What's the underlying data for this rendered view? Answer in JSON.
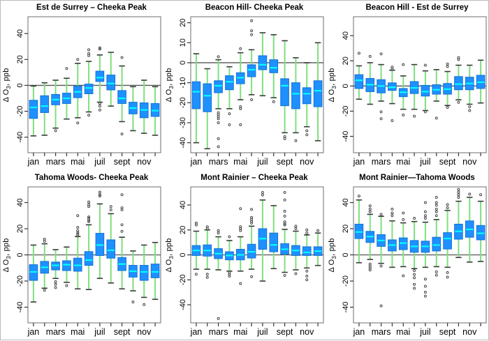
{
  "figure": {
    "ylabel_pre": "Δ O",
    "ylabel_sub": "3",
    "ylabel_post": ", ppb",
    "x_labels": [
      "jan",
      "mars",
      "mai",
      "juil",
      "sept",
      "nov"
    ]
  },
  "colors": {
    "box_fill": "#1E90FF",
    "box_stroke": "#1570D6",
    "median": "#00FFFF",
    "whisker": "#7FDF7F",
    "staple": "#3a3a3a",
    "outlier": "#4a4a4a",
    "zero_line": "#555555",
    "frame": "#6e6e6e",
    "tick": "#333333"
  },
  "chart_data": [
    {
      "type": "boxplot",
      "title": "Est de Surrey – Cheeka Peak",
      "ylim": [
        -52,
        53
      ],
      "yticks": [
        -40,
        -20,
        0,
        20,
        40
      ],
      "boxes": [
        {
          "lo": -39,
          "q1": -25.5,
          "med": -17,
          "q3": -11.5,
          "hi": -0.5,
          "out": []
        },
        {
          "lo": -38.5,
          "q1": -21,
          "med": -16,
          "q3": -8,
          "hi": 2,
          "out": []
        },
        {
          "lo": -33,
          "q1": -15,
          "med": -11,
          "q3": -7,
          "hi": 4,
          "out": [
            -35
          ]
        },
        {
          "lo": -26,
          "q1": -14,
          "med": -10,
          "q3": -6,
          "hi": 5.5,
          "out": [
            13
          ]
        },
        {
          "lo": -25,
          "q1": -9.5,
          "med": -5,
          "q3": -0.5,
          "hi": 17,
          "out": [
            20,
            -29
          ]
        },
        {
          "lo": -20.5,
          "q1": -6.5,
          "med": -2,
          "q3": 1,
          "hi": 18.5,
          "out": [
            23,
            24.5,
            27.5,
            -23
          ]
        },
        {
          "lo": -13,
          "q1": 3,
          "med": 6,
          "q3": 11,
          "hi": 23.5,
          "out": [
            28,
            29,
            -14,
            -16,
            -19
          ]
        },
        {
          "lo": -16,
          "q1": -3.5,
          "med": 1.5,
          "q3": 8,
          "hi": 25.5,
          "out": []
        },
        {
          "lo": -28,
          "q1": -14,
          "med": -10,
          "q3": -4,
          "hi": 15,
          "out": [
            21.5,
            -37.5
          ]
        },
        {
          "lo": -35,
          "q1": -22,
          "med": -17.5,
          "q3": -13,
          "hi": -1,
          "out": []
        },
        {
          "lo": -37,
          "q1": -25,
          "med": -19,
          "q3": -13.5,
          "hi": 4,
          "out": []
        },
        {
          "lo": -38.5,
          "q1": -24,
          "med": -19.5,
          "q3": -14,
          "hi": -1,
          "out": []
        }
      ]
    },
    {
      "type": "boxplot",
      "title": "Beacon Hill- Cheeka Peak",
      "ylim": [
        -45,
        23
      ],
      "yticks": [
        -40,
        -30,
        -20,
        -10,
        0,
        10,
        20
      ],
      "boxes": [
        {
          "lo": -40,
          "q1": -23,
          "med": -14.5,
          "q3": -9.5,
          "hi": 4.5,
          "out": []
        },
        {
          "lo": -43,
          "q1": -24.5,
          "med": -16.5,
          "q3": -10.5,
          "hi": -3,
          "out": []
        },
        {
          "lo": -23,
          "q1": -15,
          "med": -11.5,
          "q3": -9,
          "hi": 1.5,
          "out": [
            3,
            -25,
            -26,
            -27,
            -28,
            -30,
            -38,
            -42
          ]
        },
        {
          "lo": -23,
          "q1": -13.5,
          "med": -9.5,
          "q3": -6.5,
          "hi": -2,
          "out": [
            -25.5,
            -31
          ]
        },
        {
          "lo": -18.5,
          "q1": -10.5,
          "med": -7.5,
          "q3": -5,
          "hi": 5,
          "out": [
            7,
            -22,
            -23,
            -31
          ]
        },
        {
          "lo": -16,
          "q1": -7,
          "med": -3.5,
          "q3": -1,
          "hi": 6.5,
          "out": [
            14,
            16,
            21,
            -18.5
          ]
        },
        {
          "lo": -16.5,
          "q1": -3.5,
          "med": -1,
          "q3": 3.5,
          "hi": 15,
          "out": []
        },
        {
          "lo": -17.5,
          "q1": -5,
          "med": -2.5,
          "q3": 1.5,
          "hi": 14,
          "out": [
            -19.5
          ]
        },
        {
          "lo": -35,
          "q1": -21.5,
          "med": -11.5,
          "q3": -8,
          "hi": 11,
          "out": [
            -37,
            -38
          ]
        },
        {
          "lo": -35,
          "q1": -23,
          "med": -15.5,
          "q3": -10,
          "hi": 2.5,
          "out": [
            -39
          ]
        },
        {
          "lo": -32,
          "q1": -20.5,
          "med": -15.5,
          "q3": -12.5,
          "hi": 0,
          "out": [
            -34,
            -36
          ]
        },
        {
          "lo": -39,
          "q1": -22,
          "med": -14,
          "q3": -9,
          "hi": 10,
          "out": []
        }
      ]
    },
    {
      "type": "boxplot",
      "title": "Beacon Hill - Est de Surrey",
      "ylim": [
        -53,
        55
      ],
      "yticks": [
        -40,
        -20,
        0,
        20,
        40
      ],
      "boxes": [
        {
          "lo": -10.5,
          "q1": -2,
          "med": 4.5,
          "q3": 9,
          "hi": 16,
          "out": [
            26
          ]
        },
        {
          "lo": -14.5,
          "q1": -4.5,
          "med": 1,
          "q3": 6,
          "hi": 18.5,
          "out": [
            23.5
          ]
        },
        {
          "lo": -12,
          "q1": -5.5,
          "med": 0,
          "q3": 5,
          "hi": 17,
          "out": [
            25.5,
            -20.5,
            -26
          ]
        },
        {
          "lo": -14,
          "q1": -3.5,
          "med": -1,
          "q3": 2.5,
          "hi": 12.5,
          "out": [
            13.5,
            15,
            -27.5
          ]
        },
        {
          "lo": -18.5,
          "q1": -8.5,
          "med": -5,
          "q3": -2,
          "hi": 8,
          "out": [
            17,
            -23
          ]
        },
        {
          "lo": -18.5,
          "q1": -6,
          "med": -1.5,
          "q3": 3.5,
          "hi": 17,
          "out": [
            -24
          ]
        },
        {
          "lo": -19.5,
          "q1": -8,
          "med": -4.5,
          "q3": 0.5,
          "hi": 12,
          "out": [
            16.5,
            -20.5
          ]
        },
        {
          "lo": -12,
          "q1": -6.5,
          "med": -3,
          "q3": 1,
          "hi": 13,
          "out": [
            -25.5
          ]
        },
        {
          "lo": -15.5,
          "q1": -6.5,
          "med": -2.5,
          "q3": 2,
          "hi": 11.5,
          "out": [
            15.5,
            17.5,
            -17
          ]
        },
        {
          "lo": -11,
          "q1": -3,
          "med": 1.5,
          "q3": 7.5,
          "hi": 16.5,
          "out": [
            21,
            22.5,
            -13
          ]
        },
        {
          "lo": -14.5,
          "q1": -3,
          "med": 2,
          "q3": 7,
          "hi": 16.5,
          "out": [
            -16.5,
            -19.5
          ]
        },
        {
          "lo": -13.5,
          "q1": -2,
          "med": 3,
          "q3": 8.5,
          "hi": 20.5,
          "out": []
        }
      ]
    },
    {
      "type": "boxplot",
      "title": "Tahoma Woods- Cheeka Peak",
      "ylim": [
        -52,
        52
      ],
      "yticks": [
        -40,
        -20,
        0,
        20,
        40
      ],
      "boxes": [
        {
          "lo": -36,
          "q1": -19.5,
          "med": -13,
          "q3": -7.5,
          "hi": 7.5,
          "out": []
        },
        {
          "lo": -25.5,
          "q1": -14,
          "med": -9.5,
          "q3": -5,
          "hi": 8.5,
          "out": [
            10.5,
            12,
            -27
          ]
        },
        {
          "lo": -18,
          "q1": -11.5,
          "med": -8,
          "q3": -5.5,
          "hi": 4,
          "out": [
            -20.5,
            -22.5,
            -25
          ]
        },
        {
          "lo": -21,
          "q1": -12,
          "med": -7.5,
          "q3": -4.5,
          "hi": 6,
          "out": [
            -23.5
          ]
        },
        {
          "lo": -26,
          "q1": -12.5,
          "med": -8,
          "q3": -2.5,
          "hi": 14,
          "out": [
            14.5,
            16,
            17,
            18.5,
            21,
            30
          ]
        },
        {
          "lo": -26.5,
          "q1": -8,
          "med": -4,
          "q3": 2.5,
          "hi": 23,
          "out": [
            25.5,
            26.5,
            28,
            29,
            37,
            38.5,
            40.5
          ]
        },
        {
          "lo": -18,
          "q1": -0.5,
          "med": 7.5,
          "q3": 16.5,
          "hi": 39,
          "out": [
            45,
            46,
            48
          ]
        },
        {
          "lo": -21.5,
          "q1": -2.5,
          "med": 3.5,
          "q3": 11.5,
          "hi": 31.5,
          "out": [
            34.5,
            37
          ]
        },
        {
          "lo": -26,
          "q1": -12,
          "med": -7,
          "q3": -2,
          "hi": 13.5,
          "out": [
            18,
            23,
            34.5,
            36,
            46
          ]
        },
        {
          "lo": -27.5,
          "q1": -17,
          "med": -12.5,
          "q3": -8,
          "hi": 3,
          "out": [
            -36
          ]
        },
        {
          "lo": -32.5,
          "q1": -19.5,
          "med": -13,
          "q3": -8,
          "hi": 7.5,
          "out": [
            -38
          ]
        },
        {
          "lo": -34,
          "q1": -17.5,
          "med": -13,
          "q3": -7,
          "hi": 9.5,
          "out": []
        }
      ]
    },
    {
      "type": "boxplot",
      "title": "Mont Rainier – Cheeka Peak",
      "ylim": [
        -54.5,
        54.5
      ],
      "yticks": [
        -40,
        -20,
        0,
        20,
        40
      ],
      "boxes": [
        {
          "lo": -11.5,
          "q1": -0.5,
          "med": 3.5,
          "q3": 7.5,
          "hi": 19,
          "out": [
            24,
            25.5,
            -15.5
          ]
        },
        {
          "lo": -11.5,
          "q1": -1,
          "med": 3.5,
          "q3": 8,
          "hi": 20,
          "out": [
            21,
            22.5,
            -15.5,
            -18
          ]
        },
        {
          "lo": -12,
          "q1": -3,
          "med": 1,
          "q3": 5,
          "hi": 14.5,
          "out": [
            17.5,
            19.5,
            -51
          ]
        },
        {
          "lo": -13,
          "q1": -4,
          "med": -0.5,
          "q3": 2.5,
          "hi": 11.5,
          "out": [
            14.5,
            -14,
            -15.5,
            -17
          ]
        },
        {
          "lo": -13,
          "q1": -4,
          "med": 0,
          "q3": 4.5,
          "hi": 14.5,
          "out": [
            19.5,
            21,
            22.5,
            37,
            -23
          ]
        },
        {
          "lo": -11.5,
          "q1": -2.5,
          "med": 2.5,
          "q3": 8.5,
          "hi": 23,
          "out": [
            25.5,
            27,
            28.5,
            30,
            36.5,
            -17.5
          ]
        },
        {
          "lo": -21,
          "q1": 4.5,
          "med": 13,
          "q3": 21,
          "hi": 44,
          "out": [
            48,
            50
          ]
        },
        {
          "lo": -11,
          "q1": 2.5,
          "med": 8,
          "q3": 17.5,
          "hi": 39.5,
          "out": []
        },
        {
          "lo": -14,
          "q1": 0.5,
          "med": 4.5,
          "q3": 9,
          "hi": 20.5,
          "out": [
            24,
            25,
            26.5,
            31,
            35,
            44,
            50,
            -16.5
          ]
        },
        {
          "lo": -12,
          "q1": -0.5,
          "med": 3.5,
          "q3": 7.5,
          "hi": 19,
          "out": [
            21,
            23,
            -15
          ]
        },
        {
          "lo": -10.5,
          "q1": -0.5,
          "med": 2,
          "q3": 6.5,
          "hi": 16,
          "out": [
            17.5,
            20,
            -13,
            -17,
            -20
          ]
        },
        {
          "lo": -8.5,
          "q1": -0.5,
          "med": 3,
          "q3": 6.5,
          "hi": 17.5,
          "out": [
            19.5
          ]
        }
      ]
    },
    {
      "type": "boxplot",
      "title": "Mont Rainier—Tahoma Woods",
      "ylim": [
        -52,
        52
      ],
      "yticks": [
        -40,
        -20,
        0,
        20,
        40
      ],
      "boxes": [
        {
          "lo": -6,
          "q1": 12.5,
          "med": 17.5,
          "q3": 23.5,
          "hi": 42,
          "out": [
            45
          ]
        },
        {
          "lo": -3.5,
          "q1": 9.5,
          "med": 14,
          "q3": 18,
          "hi": 31,
          "out": [
            33,
            35,
            37.5,
            -7,
            -8.5,
            -10,
            -11.5
          ]
        },
        {
          "lo": -6.5,
          "q1": 6.5,
          "med": 11,
          "q3": 15.5,
          "hi": 29.5,
          "out": [
            31,
            -8.5,
            -39
          ]
        },
        {
          "lo": -9.5,
          "q1": 3,
          "med": 7.5,
          "q3": 11.5,
          "hi": 26,
          "out": [
            30,
            32,
            35
          ]
        },
        {
          "lo": -9,
          "q1": 4,
          "med": 9,
          "q3": 13,
          "hi": 24.5,
          "out": [
            27,
            32,
            -16
          ]
        },
        {
          "lo": -10.5,
          "q1": 2,
          "med": 6.5,
          "q3": 11,
          "hi": 25.5,
          "out": [
            28,
            -12,
            -15,
            -17.5,
            -22.5,
            -25.5
          ]
        },
        {
          "lo": -9.5,
          "q1": 2,
          "med": 6.5,
          "q3": 10.5,
          "hi": 25,
          "out": [
            28,
            30,
            33,
            40,
            -18.5,
            -24,
            -28.5,
            -31.5
          ]
        },
        {
          "lo": -9,
          "q1": 3,
          "med": 7.5,
          "q3": 13.5,
          "hi": 27,
          "out": [
            30,
            33,
            35,
            38,
            40,
            44,
            -13,
            -15.5
          ]
        },
        {
          "lo": -9.5,
          "q1": 4.5,
          "med": 12.5,
          "q3": 17,
          "hi": 34,
          "out": [
            36,
            38.5,
            -13.5,
            -17
          ]
        },
        {
          "lo": -2,
          "q1": 12,
          "med": 18,
          "q3": 23.5,
          "hi": 41,
          "out": [
            44,
            46,
            48,
            50
          ]
        },
        {
          "lo": -5.5,
          "q1": 13.5,
          "med": 19.5,
          "q3": 26,
          "hi": 44,
          "out": [
            46.5
          ]
        },
        {
          "lo": -5,
          "q1": 11.5,
          "med": 16.5,
          "q3": 22.5,
          "hi": 41,
          "out": [
            46
          ]
        }
      ]
    }
  ]
}
